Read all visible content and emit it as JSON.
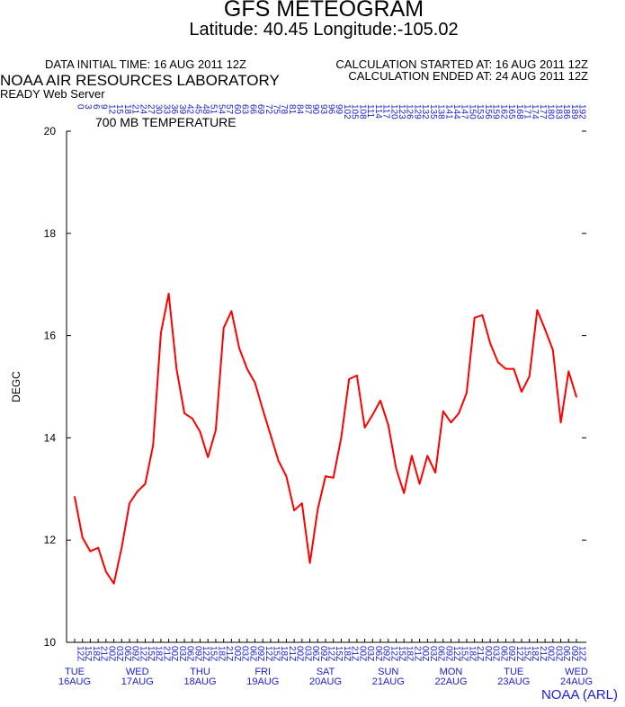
{
  "header": {
    "title": "GFS METEOGRAM",
    "subtitle": "Latitude: 40.45 Longitude:-105.02",
    "data_initial_time": "DATA INITIAL TIME: 16 AUG 2011 12Z",
    "calc_started": "CALCULATION STARTED AT: 16 AUG 2011 12Z",
    "calc_ended": "CALCULATION ENDED AT: 24 AUG 2011 12Z",
    "organization": "NOAA AIR RESOURCES LABORATORY",
    "server": "READY Web Server"
  },
  "footer": {
    "credit": "NOAA (ARL)"
  },
  "colors": {
    "line": "#ff0000",
    "labels_blue": "#1a20d8",
    "axis": "#000000"
  },
  "chart_data": {
    "type": "line",
    "title": "700 MB  TEMPERATURE",
    "ylabel": "DEGC",
    "xlabel": "",
    "ylim": [
      10,
      20
    ],
    "yticks": [
      10,
      12,
      14,
      16,
      18,
      20
    ],
    "xlim": [
      0,
      192
    ],
    "forecast_hours": [
      0,
      3,
      6,
      9,
      12,
      15,
      18,
      21,
      24,
      27,
      30,
      33,
      36,
      39,
      42,
      45,
      48,
      51,
      54,
      57,
      60,
      63,
      66,
      69,
      72,
      75,
      78,
      81,
      84,
      87,
      90,
      93,
      96,
      99,
      102,
      105,
      108,
      111,
      114,
      117,
      120,
      123,
      126,
      129,
      132,
      135,
      138,
      141,
      144,
      147,
      150,
      153,
      156,
      159,
      162,
      165,
      168,
      171,
      174,
      177,
      180,
      183,
      186,
      189,
      192
    ],
    "time_labels": [
      "12Z",
      "15Z",
      "18Z",
      "21Z",
      "00Z",
      "03Z",
      "06Z",
      "09Z"
    ],
    "day_labels": [
      {
        "hour": 0,
        "dow": "TUE",
        "date": "16AUG"
      },
      {
        "hour": 24,
        "dow": "WED",
        "date": "17AUG"
      },
      {
        "hour": 48,
        "dow": "THU",
        "date": "18AUG"
      },
      {
        "hour": 72,
        "dow": "FRI",
        "date": "19AUG"
      },
      {
        "hour": 96,
        "dow": "SAT",
        "date": "20AUG"
      },
      {
        "hour": 120,
        "dow": "SUN",
        "date": "21AUG"
      },
      {
        "hour": 144,
        "dow": "MON",
        "date": "22AUG"
      },
      {
        "hour": 168,
        "dow": "TUE",
        "date": "23AUG"
      },
      {
        "hour": 192,
        "dow": "WED",
        "date": "24AUG"
      }
    ],
    "series": [
      {
        "x": [
          0,
          3,
          6,
          9,
          12,
          15,
          18,
          21,
          24,
          27,
          30,
          33,
          36,
          39,
          42,
          45,
          48,
          51,
          54,
          57,
          60,
          63,
          66,
          69,
          72,
          75,
          78,
          81,
          84,
          87,
          90,
          93,
          96,
          99,
          102,
          105,
          108,
          111,
          114,
          117,
          120,
          123,
          126,
          129,
          132,
          135,
          138,
          141,
          144,
          147,
          150,
          153,
          156,
          159,
          162,
          165,
          168,
          171,
          174,
          177,
          180,
          183,
          186,
          189,
          192
        ],
        "values": [
          12.85,
          12.05,
          11.78,
          11.85,
          11.38,
          11.15,
          11.85,
          12.72,
          12.95,
          13.1,
          13.85,
          16.05,
          16.82,
          15.35,
          14.48,
          14.38,
          14.12,
          13.62,
          14.15,
          16.15,
          16.48,
          15.75,
          15.35,
          15.08,
          14.55,
          14.05,
          13.55,
          13.25,
          12.58,
          12.72,
          11.55,
          12.6,
          13.25,
          13.22,
          14.0,
          15.15,
          15.22,
          14.2,
          14.45,
          14.73,
          14.25,
          13.4,
          12.92,
          13.65,
          13.1,
          13.65,
          13.32,
          14.52,
          14.3,
          14.48,
          14.88,
          16.35,
          16.4,
          15.85,
          15.48,
          15.35,
          15.35,
          14.9,
          15.2,
          16.5,
          16.12,
          15.72,
          14.3,
          15.3,
          14.8
        ]
      }
    ]
  }
}
